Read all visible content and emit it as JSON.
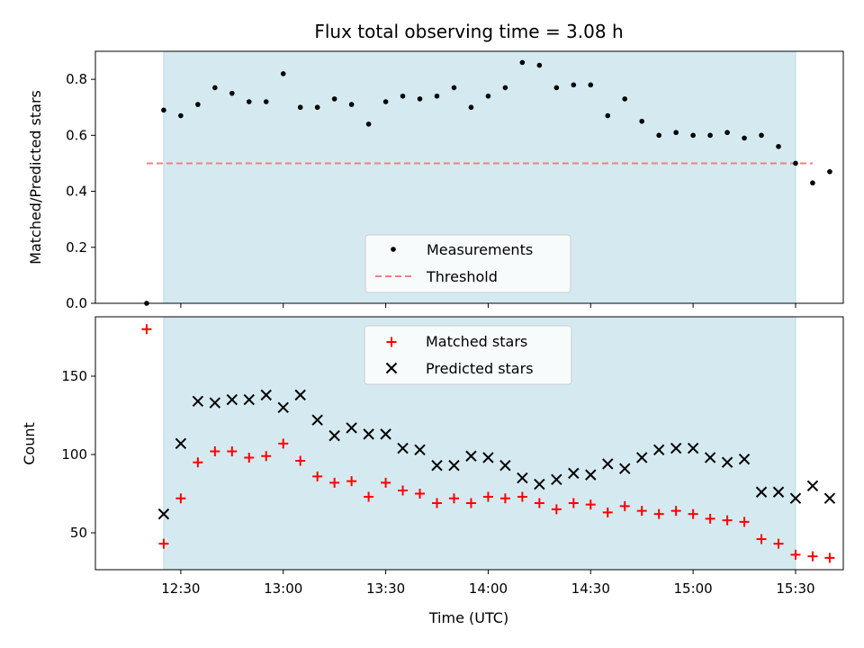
{
  "chart_data": [
    {
      "type": "scatter",
      "title": "Flux total observing time = 3.08 h",
      "xlabel": "",
      "ylabel": "Matched/Predicted stars",
      "ylim": [
        0,
        0.9
      ],
      "yticks": [
        "0.0",
        "0.2",
        "0.4",
        "0.6",
        "0.8"
      ],
      "yticks_values": [
        0,
        0.2,
        0.4,
        0.6,
        0.8
      ],
      "xlim": [
        "12:05",
        "15:40"
      ],
      "shaded_span": [
        "12:25",
        "15:30"
      ],
      "threshold": {
        "y": 0.5,
        "x_start": "12:20",
        "x_end": "15:35"
      },
      "legend": {
        "placement": "bottom-center",
        "entries": [
          "Measurements",
          "Threshold"
        ]
      },
      "series": [
        {
          "name": "Measurements",
          "x": [
            "12:20",
            "12:25",
            "12:30",
            "12:35",
            "12:40",
            "12:45",
            "12:50",
            "12:55",
            "13:00",
            "13:05",
            "13:10",
            "13:15",
            "13:20",
            "13:25",
            "13:30",
            "13:35",
            "13:40",
            "13:45",
            "13:50",
            "13:55",
            "14:00",
            "14:05",
            "14:10",
            "14:15",
            "14:20",
            "14:25",
            "14:30",
            "14:35",
            "14:40",
            "14:45",
            "14:50",
            "14:55",
            "15:00",
            "15:05",
            "15:10",
            "15:15",
            "15:20",
            "15:25",
            "15:30",
            "15:35",
            "15:40"
          ],
          "y": [
            0.0,
            0.69,
            0.67,
            0.71,
            0.77,
            0.75,
            0.72,
            0.72,
            0.82,
            0.7,
            0.7,
            0.73,
            0.71,
            0.64,
            0.72,
            0.74,
            0.73,
            0.74,
            0.77,
            0.7,
            0.74,
            0.77,
            0.86,
            0.85,
            0.77,
            0.78,
            0.78,
            0.67,
            0.73,
            0.65,
            0.6,
            0.61,
            0.6,
            0.6,
            0.61,
            0.59,
            0.6,
            0.56,
            0.5,
            0.43,
            0.47
          ]
        }
      ]
    },
    {
      "type": "scatter",
      "title": "",
      "xlabel": "Time (UTC)",
      "ylabel": "Count",
      "ylim": [
        25,
        190
      ],
      "yticks": [
        "50",
        "100",
        "150"
      ],
      "yticks_values": [
        50,
        100,
        150
      ],
      "xticks": [
        "12:30",
        "13:00",
        "13:30",
        "14:00",
        "14:30",
        "15:00",
        "15:30"
      ],
      "xlim": [
        "12:05",
        "15:40"
      ],
      "shaded_span": [
        "12:25",
        "15:30"
      ],
      "legend": {
        "placement": "top-center",
        "entries": [
          "Matched stars",
          "Predicted stars"
        ]
      },
      "series": [
        {
          "name": "Matched stars",
          "x": [
            "12:20",
            "12:25",
            "12:30",
            "12:35",
            "12:40",
            "12:45",
            "12:50",
            "12:55",
            "13:00",
            "13:05",
            "13:10",
            "13:15",
            "13:20",
            "13:25",
            "13:30",
            "13:35",
            "13:40",
            "13:45",
            "13:50",
            "13:55",
            "14:00",
            "14:05",
            "14:10",
            "14:15",
            "14:20",
            "14:25",
            "14:30",
            "14:35",
            "14:40",
            "14:45",
            "14:50",
            "14:55",
            "15:00",
            "15:05",
            "15:10",
            "15:15",
            "15:20",
            "15:25",
            "15:30",
            "15:35",
            "15:40"
          ],
          "y": [
            180,
            43,
            72,
            95,
            102,
            102,
            98,
            99,
            107,
            96,
            86,
            82,
            83,
            73,
            82,
            77,
            75,
            69,
            72,
            69,
            73,
            72,
            73,
            69,
            65,
            69,
            68,
            63,
            67,
            64,
            62,
            64,
            62,
            59,
            58,
            57,
            46,
            43,
            36,
            35,
            34
          ]
        },
        {
          "name": "Predicted stars",
          "x": [
            "12:25",
            "12:30",
            "12:35",
            "12:40",
            "12:45",
            "12:50",
            "12:55",
            "13:00",
            "13:05",
            "13:10",
            "13:15",
            "13:20",
            "13:25",
            "13:30",
            "13:35",
            "13:40",
            "13:45",
            "13:50",
            "13:55",
            "14:00",
            "14:05",
            "14:10",
            "14:15",
            "14:20",
            "14:25",
            "14:30",
            "14:35",
            "14:40",
            "14:45",
            "14:50",
            "14:55",
            "15:00",
            "15:05",
            "15:10",
            "15:15",
            "15:20",
            "15:25",
            "15:30",
            "15:35",
            "15:40"
          ],
          "y": [
            62,
            107,
            134,
            133,
            135,
            135,
            138,
            130,
            138,
            122,
            112,
            117,
            113,
            113,
            104,
            103,
            93,
            93,
            99,
            98,
            93,
            85,
            81,
            84,
            88,
            87,
            94,
            91,
            98,
            103,
            104,
            104,
            98,
            95,
            97,
            76,
            76,
            72,
            80,
            72
          ]
        }
      ]
    }
  ],
  "colors": {
    "shade": "#d4eaf0",
    "shade_edge": "#b9dce6",
    "threshold": "#f08080",
    "measurements": "#000000",
    "matched": "#ff0000",
    "predicted": "#000000"
  }
}
